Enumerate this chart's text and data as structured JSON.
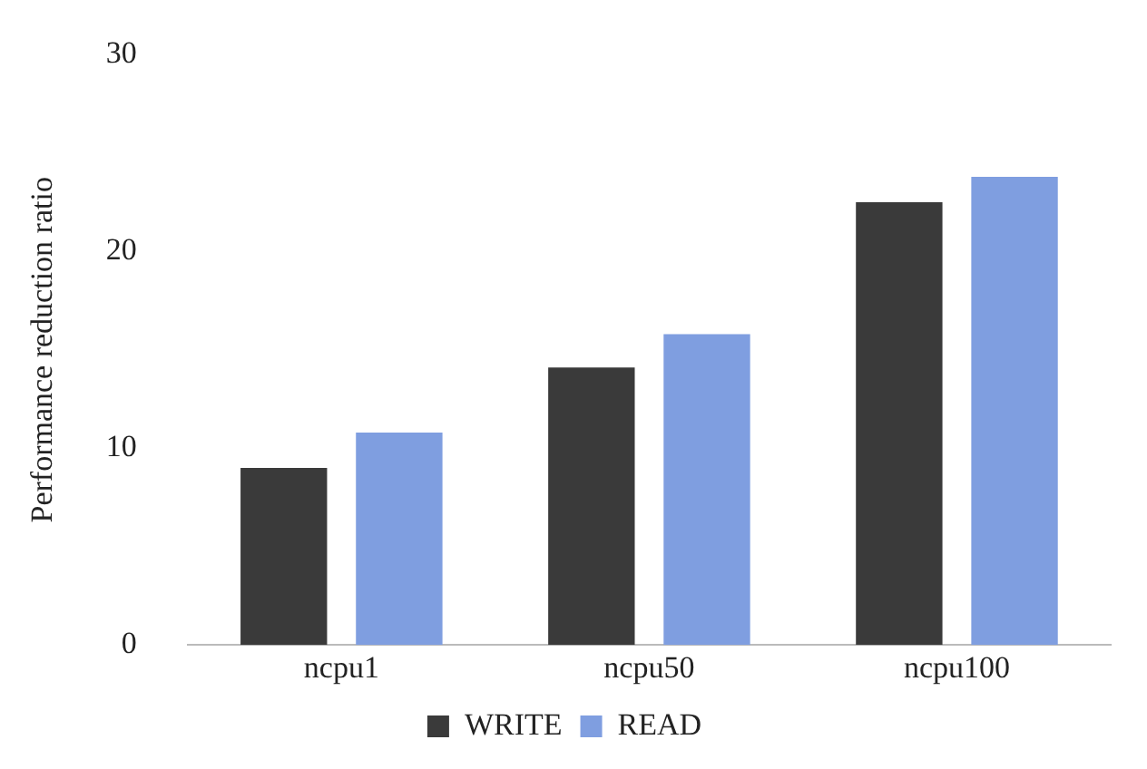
{
  "chart_data": {
    "type": "bar",
    "ylabel": "Performance reduction ratio",
    "categories": [
      "ncpu1",
      "ncpu50",
      "ncpu100"
    ],
    "series": [
      {
        "name": "WRITE",
        "color": "#3a3a3a",
        "values": [
          9.0,
          14.1,
          22.5
        ]
      },
      {
        "name": "READ",
        "color": "#7f9ee0",
        "values": [
          10.8,
          15.8,
          23.8
        ]
      }
    ],
    "ylim": [
      0,
      30
    ],
    "yticks": [
      0,
      10,
      20,
      30
    ],
    "grid": false,
    "legend": "bottom"
  }
}
